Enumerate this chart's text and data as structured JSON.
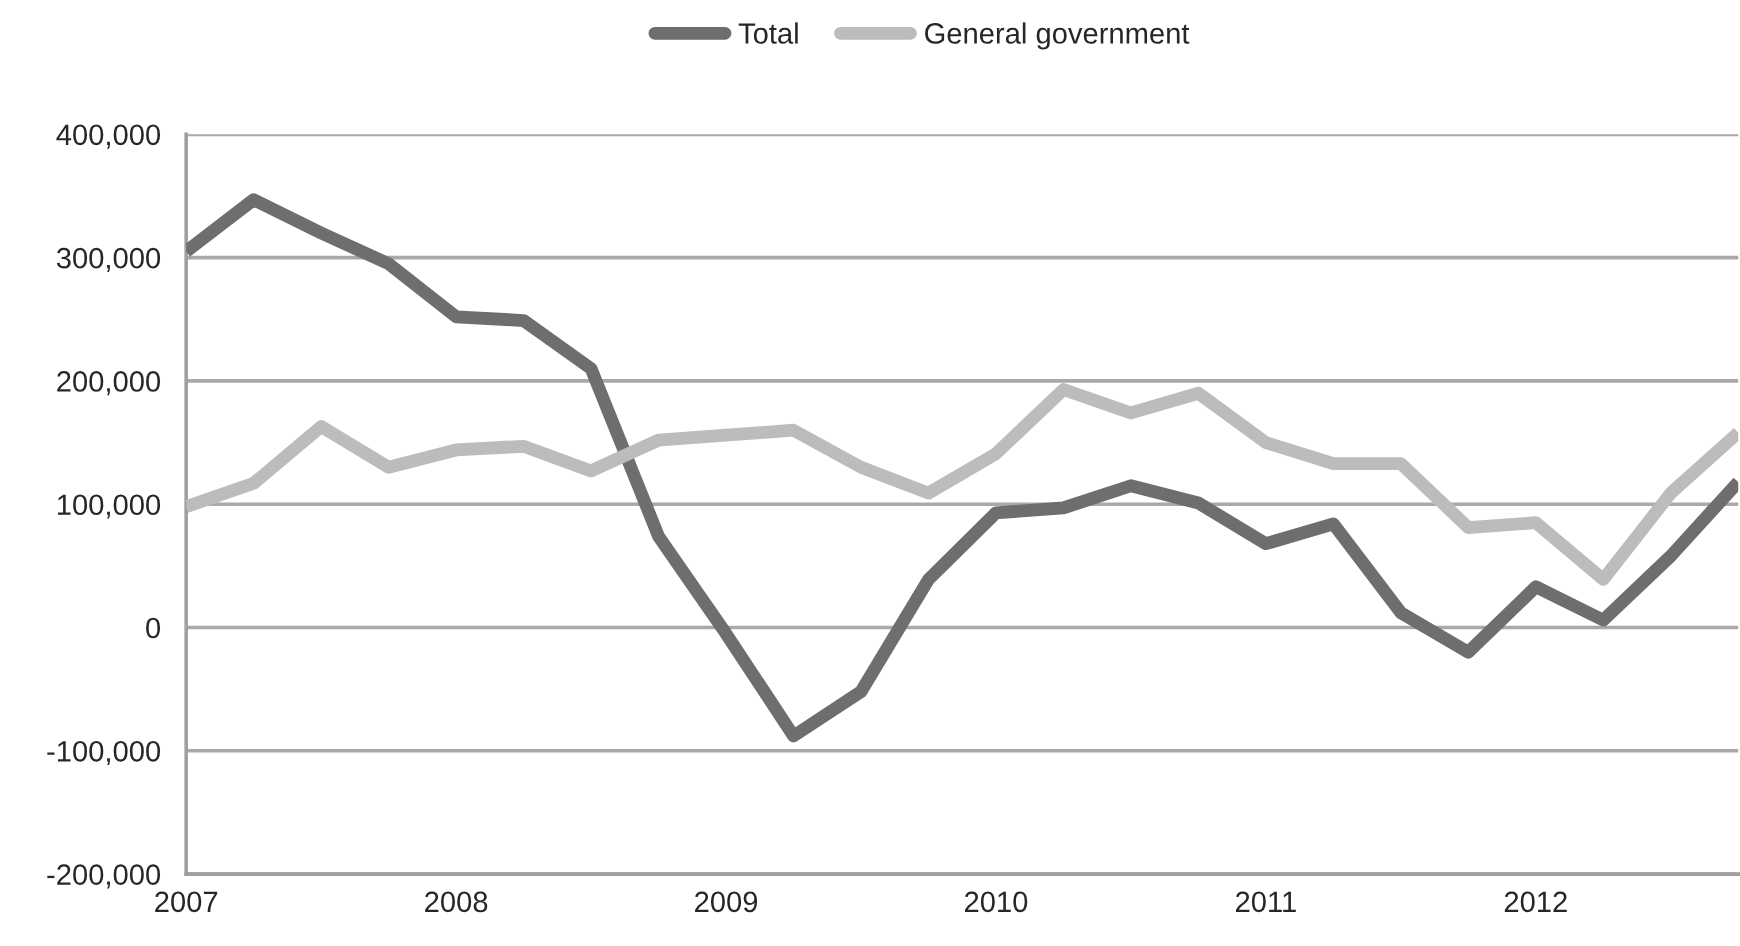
{
  "chart_data": {
    "type": "line",
    "x": [
      2007,
      2007.25,
      2007.5,
      2007.75,
      2008,
      2008.25,
      2008.5,
      2008.75,
      2009,
      2009.25,
      2009.5,
      2009.75,
      2010,
      2010.25,
      2010.5,
      2010.75,
      2011,
      2011.25,
      2011.5,
      2011.75,
      2012,
      2012.25,
      2012.5,
      2012.75
    ],
    "series": [
      {
        "name": "Total",
        "color": "#6e6e6e",
        "values": [
          305000,
          347000,
          320000,
          295000,
          252000,
          249000,
          210000,
          74000,
          -5000,
          -88000,
          -52000,
          39000,
          93000,
          97000,
          115000,
          101000,
          68000,
          84000,
          12000,
          -20000,
          33000,
          6000,
          58000,
          118000
        ]
      },
      {
        "name": "General government",
        "color": "#bcbcbc",
        "values": [
          98000,
          117000,
          163000,
          130000,
          144000,
          147000,
          127000,
          152000,
          156000,
          160000,
          130000,
          109000,
          141000,
          193000,
          174000,
          190000,
          150000,
          133000,
          133000,
          81000,
          85000,
          39000,
          109000,
          158000
        ]
      }
    ],
    "xlim": [
      2007,
      2012.75
    ],
    "xticks": [
      2007,
      2008,
      2009,
      2010,
      2011,
      2012
    ],
    "ylim": [
      -200000,
      400000
    ],
    "yticks": [
      {
        "value": -200000,
        "label": "-200,000"
      },
      {
        "value": -100000,
        "label": "-100,000"
      },
      0,
      {
        "value": 100000,
        "label": "100,000"
      },
      {
        "value": 200000,
        "label": "200,000"
      },
      {
        "value": 300000,
        "label": "300,000"
      },
      {
        "value": 400000,
        "label": "400,000"
      }
    ],
    "grid": "y",
    "legend": "top",
    "marker": "none",
    "line_style": "solid"
  }
}
